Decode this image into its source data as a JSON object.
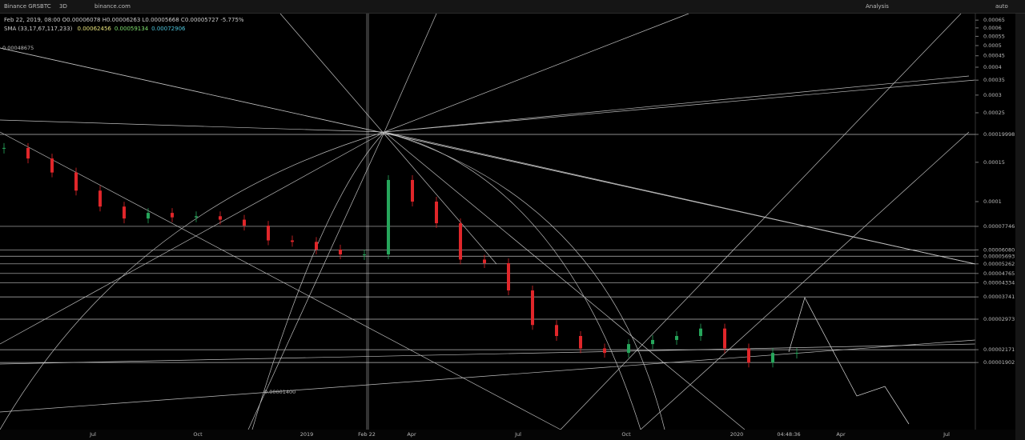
{
  "toolbar": {
    "symbol": "Binance GRSBTC",
    "interval": "3D",
    "source": "binance.com",
    "analysis": "Analysis",
    "auto": "auto"
  },
  "legend": {
    "date": "Feb 22, 2019, 08:00",
    "ohlc": "O0.00006078 H0.00006263 L0.00005668 C0.00005727 -5.775%",
    "sma_label": "SMA (33,17,67,117,233)",
    "sma_values": [
      {
        "text": "0.00062456",
        "color": "#e6e27a"
      },
      {
        "text": "0.00059134",
        "color": "#7ee06e"
      },
      {
        "text": "0.00072906",
        "color": "#4cc3d9"
      }
    ]
  },
  "annotations": [
    "0.00048675",
    "0.00001400"
  ],
  "time_labels": [
    "Jul",
    "Oct",
    "2019",
    "Feb 22",
    "Apr",
    "Jul",
    "Oct",
    "2020",
    "04:48:36",
    "Apr",
    "Jul"
  ],
  "price_axis": {
    "log": true,
    "yticks": [
      0.00065,
      0.0006,
      0.00055,
      0.0005,
      0.00045,
      0.0004,
      0.00035,
      0.0003,
      0.00025,
      0.00019998,
      0.00015,
      0.0001,
      7.746e-05,
      {
        "value": 6.08e-05,
        "label": "0.00006080"
      },
      5.693e-05,
      5.262e-05,
      4.765e-05,
      4.334e-05,
      3.741e-05,
      2.973e-05,
      2.171e-05,
      1.902e-05
    ]
  },
  "closes": [
    0.000174,
    0.000156,
    0.000135,
    0.000112,
    9.5e-05,
    8.4e-05,
    8.9e-05,
    8.5e-05,
    8.6e-05,
    8.3e-05,
    7.8e-05,
    6.7e-05,
    6.6e-05,
    6.1e-05,
    5.8e-05,
    5.8e-05,
    0.000125,
    0.0001,
    8e-05,
    5.5e-05,
    5.3e-05,
    4e-05,
    2.8e-05,
    2.5e-05,
    2.2e-05,
    2.1e-05,
    2.3e-05,
    2.4e-05,
    2.5e-05,
    2.7e-05,
    2.2e-05,
    1.9e-05,
    2.1e-05,
    2.1e-05
  ]
}
